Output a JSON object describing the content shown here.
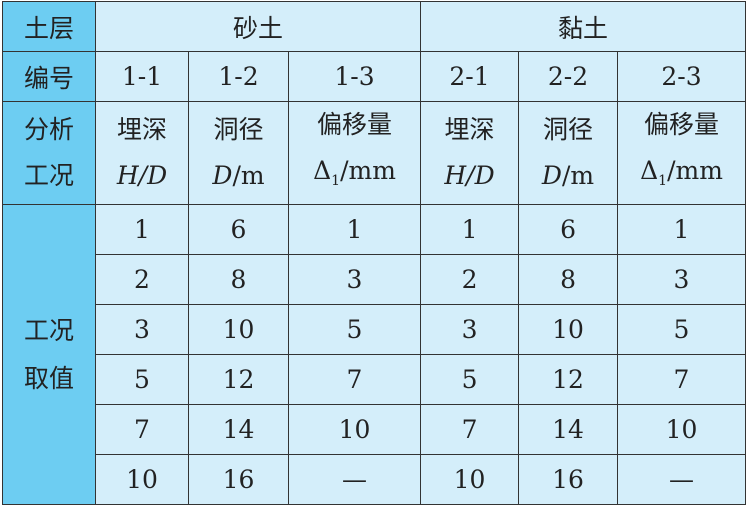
{
  "header": {
    "soil_label": "土层",
    "sand": "砂土",
    "clay": "黏土",
    "id_label": "编号",
    "ids": [
      "1-1",
      "1-2",
      "1-3",
      "2-1",
      "2-2",
      "2-3"
    ],
    "cond_label_1": "分析",
    "cond_label_2": "工况",
    "params": [
      {
        "name": "埋深",
        "sym": "H/D",
        "unit": ""
      },
      {
        "name": "洞径",
        "sym": "D",
        "unit": "/m"
      },
      {
        "name": "偏移量",
        "sym": "Δ",
        "sub": "1",
        "unit": "/mm"
      },
      {
        "name": "埋深",
        "sym": "H/D",
        "unit": ""
      },
      {
        "name": "洞径",
        "sym": "D",
        "unit": "/m"
      },
      {
        "name": "偏移量",
        "sym": "Δ",
        "sub": "1",
        "unit": "/mm"
      }
    ]
  },
  "values_label_1": "工况",
  "values_label_2": "取值",
  "rows": [
    [
      "1",
      "6",
      "1",
      "1",
      "6",
      "1"
    ],
    [
      "2",
      "8",
      "3",
      "2",
      "8",
      "3"
    ],
    [
      "3",
      "10",
      "5",
      "3",
      "10",
      "5"
    ],
    [
      "5",
      "12",
      "7",
      "5",
      "12",
      "7"
    ],
    [
      "7",
      "14",
      "10",
      "7",
      "14",
      "10"
    ],
    [
      "10",
      "16",
      "—",
      "10",
      "16",
      "—"
    ]
  ]
}
